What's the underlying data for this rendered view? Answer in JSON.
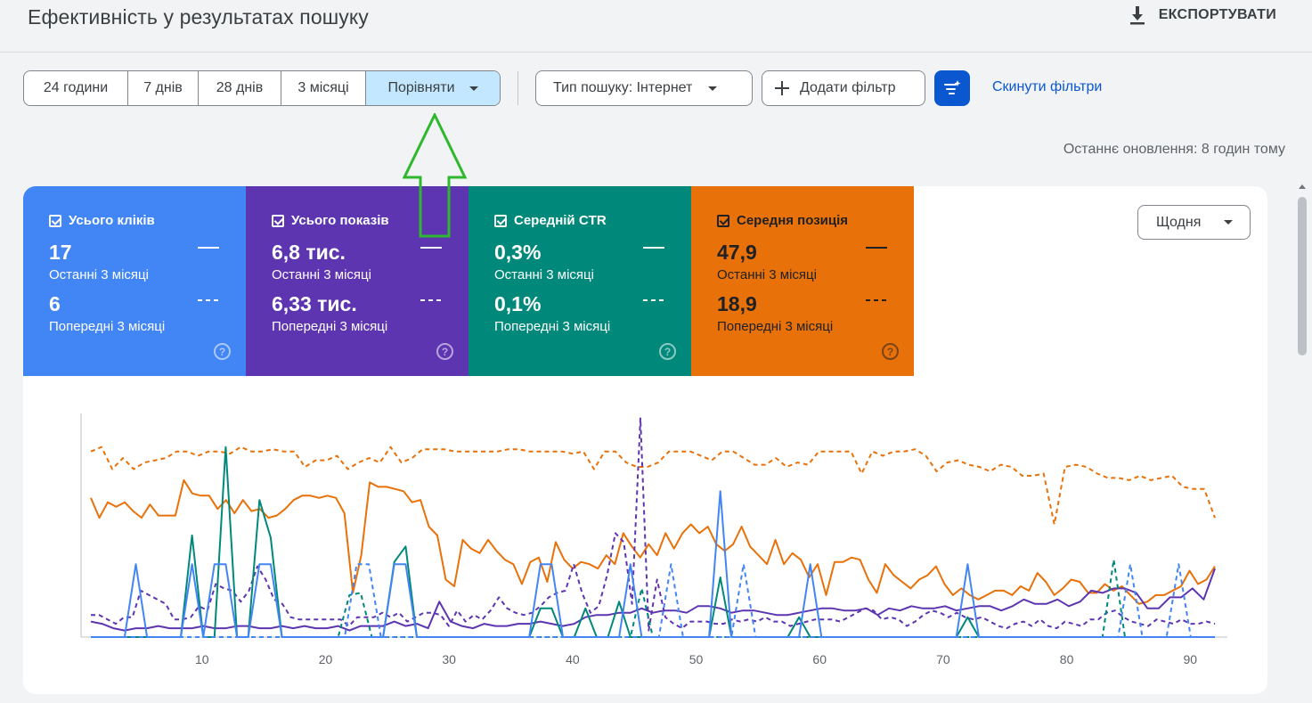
{
  "header": {
    "title": "Ефективність у результатах пошуку",
    "export_label": "ЕКСПОРТУВАТИ"
  },
  "date_range": {
    "options": [
      "24 години",
      "7 днів",
      "28 днів",
      "3 місяці",
      "Порівняти"
    ],
    "selected": "Порівняти"
  },
  "filters": {
    "search_type": "Тип пошуку: Інтернет",
    "add_filter": "Додати фільтр",
    "reset": "Скинути фільтри"
  },
  "last_update": "Останнє оновлення: 8 годин тому",
  "period_select": {
    "value": "Щодня"
  },
  "metrics": [
    {
      "id": "clicks",
      "label": "Усього кліків",
      "current_value": "17",
      "current_period": "Останні 3 місяці",
      "previous_value": "6",
      "previous_period": "Попередні 3 місяці",
      "color": "#4285f4",
      "text_color": "#ffffff"
    },
    {
      "id": "impressions",
      "label": "Усього показів",
      "current_value": "6,8 тис.",
      "current_period": "Останні 3 місяці",
      "previous_value": "6,33 тис.",
      "previous_period": "Попередні 3 місяці",
      "color": "#5e35b1",
      "text_color": "#ffffff"
    },
    {
      "id": "ctr",
      "label": "Середній CTR",
      "current_value": "0,3%",
      "current_period": "Останні 3 місяці",
      "previous_value": "0,1%",
      "previous_period": "Попередні 3 місяці",
      "color": "#00897b",
      "text_color": "#ffffff"
    },
    {
      "id": "position",
      "label": "Середня позиція",
      "current_value": "47,9",
      "current_period": "Останні 3 місяці",
      "previous_value": "18,9",
      "previous_period": "Попередні 3 місяці",
      "color": "#e8710a",
      "text_color": "#202124"
    }
  ],
  "chart_data": {
    "type": "line",
    "x_ticks": [
      "10",
      "20",
      "30",
      "40",
      "50",
      "60",
      "70",
      "80",
      "90"
    ],
    "x_range": [
      1,
      92
    ],
    "y_range": [
      0,
      1
    ],
    "grid": false,
    "series": [
      {
        "metric": "position",
        "period": "Останні 3 місяці",
        "style": "solid",
        "color": "#e8710a",
        "values": [
          0.63,
          0.54,
          0.61,
          0.59,
          0.61,
          0.57,
          0.54,
          0.6,
          0.55,
          0.55,
          0.55,
          0.71,
          0.65,
          0.64,
          0.64,
          0.58,
          0.62,
          0.56,
          0.62,
          0.57,
          0.58,
          0.54,
          0.55,
          0.58,
          0.62,
          0.64,
          0.64,
          0.63,
          0.64,
          0.63,
          0.56,
          0.2,
          0.37,
          0.7,
          0.68,
          0.68,
          0.67,
          0.66,
          0.61,
          0.62,
          0.5,
          0.46,
          0.26,
          0.23,
          0.44,
          0.4,
          0.38,
          0.44,
          0.39,
          0.35,
          0.33,
          0.24,
          0.34,
          0.36,
          0.25,
          0.43,
          0.35,
          0.31,
          0.34,
          0.33,
          0.31,
          0.37,
          0.33,
          0.47,
          0.41,
          0.36,
          0.42,
          0.37,
          0.47,
          0.4,
          0.47,
          0.51,
          0.47,
          0.5,
          0.42,
          0.39,
          0.42,
          0.5,
          0.41,
          0.37,
          0.33,
          0.44,
          0.33,
          0.38,
          0.35,
          0.27,
          0.33,
          0.19,
          0.34,
          0.34,
          0.36,
          0.35,
          0.26,
          0.2,
          0.33,
          0.28,
          0.25,
          0.22,
          0.26,
          0.28,
          0.32,
          0.24,
          0.19,
          0.22,
          0.19,
          0.17,
          0.19,
          0.21,
          0.21,
          0.19,
          0.23,
          0.21,
          0.29,
          0.25,
          0.19,
          0.22,
          0.26,
          0.25,
          0.2,
          0.2,
          0.24,
          0.21,
          0.23,
          0.19,
          0.15,
          0.16,
          0.19,
          0.19,
          0.21,
          0.23,
          0.3,
          0.24,
          0.26,
          0.32
        ]
      },
      {
        "metric": "position",
        "period": "Попередні 3 місяці",
        "style": "dashed",
        "color": "#e8710a",
        "values": [
          0.84,
          0.86,
          0.76,
          0.81,
          0.76,
          0.79,
          0.8,
          0.81,
          0.84,
          0.84,
          0.82,
          0.84,
          0.84,
          0.83,
          0.86,
          0.84,
          0.84,
          0.85,
          0.84,
          0.84,
          0.77,
          0.8,
          0.8,
          0.82,
          0.76,
          0.79,
          0.81,
          0.79,
          0.86,
          0.79,
          0.81,
          0.85,
          0.85,
          0.85,
          0.84,
          0.84,
          0.84,
          0.84,
          0.84,
          0.85,
          0.85,
          0.84,
          0.84,
          0.84,
          0.84,
          0.83,
          0.84,
          0.76,
          0.84,
          0.84,
          0.79,
          0.77,
          0.77,
          0.79,
          0.84,
          0.84,
          0.84,
          0.82,
          0.8,
          0.84,
          0.84,
          0.81,
          0.78,
          0.78,
          0.81,
          0.77,
          0.79,
          0.78,
          0.84,
          0.84,
          0.84,
          0.84,
          0.74,
          0.84,
          0.82,
          0.84,
          0.84,
          0.85,
          0.82,
          0.75,
          0.79,
          0.8,
          0.78,
          0.77,
          0.75,
          0.78,
          0.77,
          0.73,
          0.73,
          0.74,
          0.51,
          0.77,
          0.78,
          0.77,
          0.74,
          0.72,
          0.72,
          0.71,
          0.73,
          0.71,
          0.72,
          0.73,
          0.68,
          0.67,
          0.67,
          0.54
        ]
      },
      {
        "metric": "impressions",
        "period": "Останні 3 місяці",
        "style": "solid",
        "color": "#5e35b1",
        "values": [
          0.07,
          0.06,
          0.04,
          0.03,
          0.04,
          0.04,
          0.05,
          0.04,
          0.04,
          0.04,
          0.05,
          0.04,
          0.04,
          0.05,
          0.05,
          0.04,
          0.04,
          0.05,
          0.04,
          0.05,
          0.04,
          0.04,
          0.05,
          0.03,
          0.05,
          0.05,
          0.05,
          0.07,
          0.05,
          0.06,
          0.04,
          0.16,
          0.07,
          0.05,
          0.04,
          0.06,
          0.05,
          0.05,
          0.06,
          0.06,
          0.07,
          0.06,
          0.05,
          0.06,
          0.09,
          0.1,
          0.1,
          0.11,
          0.11,
          0.13,
          0.11,
          0.12,
          0.12,
          0.11,
          0.14,
          0.14,
          0.13,
          0.11,
          0.12,
          0.12,
          0.11,
          0.1,
          0.1,
          0.11,
          0.12,
          0.13,
          0.13,
          0.12,
          0.12,
          0.13,
          0.1,
          0.13,
          0.12,
          0.14,
          0.13,
          0.13,
          0.14,
          0.12,
          0.13,
          0.14,
          0.14,
          0.12,
          0.14,
          0.17,
          0.15,
          0.15,
          0.17,
          0.14,
          0.16,
          0.21,
          0.2,
          0.22,
          0.22,
          0.2,
          0.13,
          0.13,
          0.18,
          0.18,
          0.22,
          0.17,
          0.31
        ]
      },
      {
        "metric": "impressions",
        "period": "Попередні 3 місяці",
        "style": "dashed",
        "color": "#5e35b1",
        "values": [
          0.1,
          0.1,
          0.08,
          0.06,
          0.09,
          0.09,
          0.21,
          0.19,
          0.17,
          0.15,
          0.08,
          0.08,
          0.09,
          0.14,
          0.12,
          0.24,
          0.22,
          0.21,
          0.16,
          0.21,
          0.32,
          0.26,
          0.17,
          0.15,
          0.09,
          0.08,
          0.08,
          0.08,
          0.08,
          0.08,
          0.08,
          0.05,
          0.09,
          0.09,
          0.09,
          0.11,
          0.09,
          0.11,
          0.07,
          0.09,
          0.11,
          0.11,
          0.1,
          0.05,
          0.12,
          0.07,
          0.1,
          0.08,
          0.12,
          0.18,
          0.13,
          0.11,
          0.1,
          0.11,
          0.14,
          0.18,
          0.2,
          0.21,
          0.33,
          0.2,
          0.11,
          0.14,
          0.28,
          0.47,
          0.43,
          0.15,
          0.99,
          0.03,
          0.26,
          0.09,
          0.06,
          0.04,
          0.07,
          0.07,
          0.07,
          0.06,
          0.06,
          0.08,
          0.07,
          0.08,
          0.07,
          0.09,
          0.07,
          0.07,
          0.05,
          0.06,
          0.07,
          0.08,
          0.08,
          0.08,
          0.07,
          0.09,
          0.11,
          0.13,
          0.12,
          0.08,
          0.09,
          0.08,
          0.05,
          0.07,
          0.1,
          0.12,
          0.11,
          0.09,
          0.11,
          0.09,
          0.08,
          0.09,
          0.07,
          0.05,
          0.04,
          0.06,
          0.07,
          0.05,
          0.08,
          0.05,
          0.04,
          0.07,
          0.06,
          0.05,
          0.08,
          0.08,
          0.11,
          0.12,
          0.09,
          0.07,
          0.06,
          0.05,
          0.08,
          0.07,
          0.06,
          0.08,
          0.06,
          0.06,
          0.07,
          0.06
        ]
      },
      {
        "metric": "ctr",
        "period": "Останні 3 місяці",
        "style": "solid",
        "color": "#00897b",
        "values": [
          0,
          0,
          0,
          0,
          0,
          0,
          0,
          0,
          0,
          0.46,
          0,
          0,
          0.86,
          0,
          0,
          0.62,
          0.45,
          0,
          0,
          0,
          0,
          0,
          0,
          0,
          0,
          0,
          0,
          0.34,
          0.41,
          0,
          0,
          0,
          0,
          0,
          0,
          0,
          0,
          0,
          0,
          0,
          0.13,
          0.13,
          0,
          0,
          0.13,
          0,
          0,
          0.16,
          0,
          0,
          0,
          0,
          0,
          0,
          0,
          0,
          0.27,
          0,
          0,
          0,
          0,
          0,
          0,
          0.09,
          0,
          0,
          0,
          0,
          0,
          0,
          0,
          0,
          0,
          0,
          0,
          0,
          0,
          0,
          0.09,
          0,
          0,
          0,
          0,
          0,
          0,
          0,
          0,
          0,
          0,
          0,
          0,
          0,
          0,
          0,
          0,
          0,
          0,
          0,
          0,
          0,
          0
        ]
      },
      {
        "metric": "ctr",
        "period": "Попередні 3 місяці",
        "style": "dashed",
        "color": "#00897b",
        "values": [
          0,
          0,
          0,
          0,
          0,
          0,
          0,
          0,
          0,
          0,
          0,
          0,
          0,
          0,
          0,
          0,
          0,
          0,
          0,
          0,
          0,
          0,
          0,
          0.19,
          0.2,
          0,
          0,
          0,
          0,
          0,
          0,
          0,
          0,
          0,
          0,
          0,
          0,
          0,
          0,
          0,
          0,
          0,
          0,
          0,
          0,
          0,
          0,
          0,
          0,
          0.22,
          0,
          0,
          0,
          0,
          0,
          0,
          0,
          0,
          0,
          0,
          0,
          0,
          0,
          0,
          0,
          0,
          0,
          0,
          0,
          0,
          0,
          0,
          0,
          0,
          0,
          0,
          0,
          0,
          0,
          0,
          0,
          0,
          0,
          0,
          0,
          0,
          0,
          0,
          0,
          0,
          0,
          0.35,
          0,
          0,
          0,
          0,
          0,
          0,
          0,
          0,
          0
        ]
      },
      {
        "metric": "clicks",
        "period": "Останні 3 місяці",
        "style": "solid",
        "color": "#4285f4",
        "values": [
          0,
          0,
          0,
          0,
          0.33,
          0,
          0,
          0,
          0,
          0.33,
          0,
          0.33,
          0.33,
          0,
          0,
          0.33,
          0.33,
          0,
          0,
          0,
          0,
          0,
          0,
          0,
          0,
          0,
          0,
          0.33,
          0.33,
          0,
          0,
          0,
          0,
          0,
          0,
          0,
          0,
          0,
          0,
          0,
          0.33,
          0.33,
          0,
          0,
          0,
          0,
          0,
          0,
          0.33,
          0,
          0,
          0,
          0,
          0,
          0,
          0,
          0.66,
          0,
          0,
          0,
          0,
          0,
          0,
          0,
          0.33,
          0,
          0,
          0,
          0,
          0,
          0,
          0,
          0,
          0,
          0,
          0,
          0,
          0,
          0.33,
          0,
          0,
          0,
          0,
          0,
          0,
          0,
          0,
          0,
          0,
          0,
          0,
          0,
          0,
          0,
          0,
          0,
          0,
          0,
          0,
          0,
          0
        ]
      },
      {
        "metric": "clicks",
        "period": "Попередні 3 місяці",
        "style": "dashed",
        "color": "#4285f4",
        "values": [
          0,
          0,
          0,
          0,
          0,
          0,
          0,
          0,
          0,
          0,
          0,
          0,
          0,
          0,
          0,
          0,
          0,
          0,
          0,
          0,
          0,
          0,
          0.33,
          0.33,
          0,
          0,
          0,
          0,
          0,
          0,
          0,
          0,
          0,
          0,
          0,
          0,
          0,
          0,
          0,
          0,
          0,
          0,
          0,
          0,
          0,
          0,
          0,
          0,
          0.33,
          0,
          0,
          0,
          0,
          0,
          0.33,
          0,
          0,
          0,
          0,
          0,
          0,
          0,
          0,
          0,
          0,
          0,
          0,
          0,
          0,
          0,
          0,
          0,
          0,
          0,
          0,
          0,
          0,
          0,
          0,
          0,
          0,
          0,
          0,
          0,
          0,
          0,
          0.33,
          0,
          0,
          0,
          0.33,
          0,
          0,
          0
        ]
      }
    ]
  }
}
